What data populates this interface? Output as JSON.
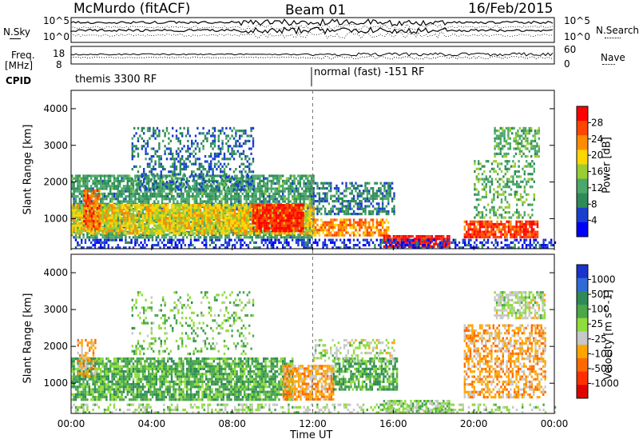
{
  "header": {
    "station": "McMurdo (fitACF)",
    "beam": "Beam 01",
    "date": "16/Feb/2015"
  },
  "top_panels": {
    "nsky_label": "N.Sky",
    "nsky_ticks": [
      "10^5",
      "10^0"
    ],
    "nsearch_label": "N.Search",
    "nsearch_ticks": [
      "10^5",
      "10^0"
    ],
    "freq_label_1": "Freq.",
    "freq_label_2": "[MHz]",
    "freq_ticks": [
      "18",
      "8"
    ],
    "nave_label": "Nave",
    "nave_ticks": [
      "60",
      "0"
    ],
    "cpid_label": "CPID",
    "cpid_segments": [
      {
        "start": "00:00",
        "text": "themis 3300 RF"
      },
      {
        "start": "12:00",
        "text": "normal (fast) -151 RF"
      }
    ]
  },
  "chart_data": [
    {
      "type": "heatmap",
      "parameter": "Power",
      "colorbar_label": "Power [dB]",
      "colorbar_ticks": [
        "28",
        "24",
        "20",
        "16",
        "12",
        "8",
        "4"
      ],
      "colorbar_range": [
        0,
        30
      ],
      "colors": [
        "#0000ff",
        "#1a3fd0",
        "#2e8b57",
        "#4aa86a",
        "#9acd32",
        "#ffd700",
        "#ff8c00",
        "#ff4500",
        "#ff0000"
      ],
      "ylabel": "Slant Range [km]",
      "yticks": [
        1000,
        2000,
        3000,
        4000
      ],
      "ylim": [
        180,
        4500
      ],
      "xlim_hours": [
        0,
        24
      ],
      "regions": [
        {
          "t": [
            0.0,
            12.0
          ],
          "r": [
            500,
            2200
          ],
          "v": 10,
          "d": 0.75
        },
        {
          "t": [
            0.0,
            12.0
          ],
          "r": [
            600,
            1400
          ],
          "v": 18,
          "d": 0.85
        },
        {
          "t": [
            0.6,
            1.4
          ],
          "r": [
            700,
            1800
          ],
          "v": 24,
          "d": 0.7
        },
        {
          "t": [
            9.0,
            11.5
          ],
          "r": [
            650,
            1400
          ],
          "v": 27,
          "d": 0.85
        },
        {
          "t": [
            3.0,
            9.0
          ],
          "r": [
            1800,
            3500
          ],
          "v": 7,
          "d": 0.35
        },
        {
          "t": [
            12.0,
            16.0
          ],
          "r": [
            1100,
            2000
          ],
          "v": 8,
          "d": 0.55
        },
        {
          "t": [
            12.0,
            15.8
          ],
          "r": [
            550,
            1000
          ],
          "v": 22,
          "d": 0.7
        },
        {
          "t": [
            15.5,
            18.8
          ],
          "r": [
            250,
            550
          ],
          "v": 28,
          "d": 0.9
        },
        {
          "t": [
            19.5,
            23.2
          ],
          "r": [
            500,
            950
          ],
          "v": 26,
          "d": 0.85
        },
        {
          "t": [
            20.0,
            23.0
          ],
          "r": [
            1000,
            2600
          ],
          "v": 12,
          "d": 0.35
        },
        {
          "t": [
            21.0,
            23.2
          ],
          "r": [
            2700,
            3500
          ],
          "v": 12,
          "d": 0.55
        },
        {
          "t": [
            0.0,
            24.0
          ],
          "r": [
            200,
            450
          ],
          "v": 4,
          "d": 0.45
        }
      ]
    },
    {
      "type": "heatmap",
      "parameter": "Velocity",
      "colorbar_label": "Velocity [m s^-1]",
      "colorbar_ticks": [
        "1000",
        "500",
        "100",
        "25",
        "-25",
        "-100",
        "-500",
        "-1000"
      ],
      "colorbar_range": [
        -1000,
        1000
      ],
      "colors": [
        "#1a33cc",
        "#2e6bd6",
        "#2e8b57",
        "#4aa84a",
        "#8fdc3c",
        "#c8c8c8",
        "#ffa500",
        "#ff6a00",
        "#ff3000",
        "#e00000"
      ],
      "ylabel": "Slant Range [km]",
      "yticks": [
        1000,
        2000,
        3000,
        4000
      ],
      "ylim": [
        180,
        4500
      ],
      "xlim_hours": [
        0,
        24
      ],
      "regions": [
        {
          "t": [
            0.0,
            11.0
          ],
          "r": [
            550,
            1700
          ],
          "v": 300,
          "d": 0.8
        },
        {
          "t": [
            0.3,
            1.2
          ],
          "r": [
            1200,
            2200
          ],
          "v": -300,
          "d": 0.55
        },
        {
          "t": [
            3.0,
            9.0
          ],
          "r": [
            1800,
            3500
          ],
          "v": 200,
          "d": 0.2
        },
        {
          "t": [
            10.5,
            13.0
          ],
          "r": [
            550,
            1500
          ],
          "v": -300,
          "d": 0.8
        },
        {
          "t": [
            13.0,
            16.2
          ],
          "r": [
            800,
            1700
          ],
          "v": 300,
          "d": 0.7
        },
        {
          "t": [
            12.0,
            16.0
          ],
          "r": [
            1600,
            2200
          ],
          "v": 0,
          "d": 0.35
        },
        {
          "t": [
            15.5,
            18.8
          ],
          "r": [
            250,
            550
          ],
          "v": 150,
          "d": 0.75
        },
        {
          "t": [
            19.5,
            23.5
          ],
          "r": [
            600,
            2600
          ],
          "v": -300,
          "d": 0.55
        },
        {
          "t": [
            21.0,
            23.5
          ],
          "r": [
            2800,
            3500
          ],
          "v": 0,
          "d": 0.7
        },
        {
          "t": [
            0.0,
            24.0
          ],
          "r": [
            200,
            450
          ],
          "v": 50,
          "d": 0.35
        }
      ]
    }
  ],
  "xaxis": {
    "ticks": [
      "00:00",
      "04:00",
      "08:00",
      "12:00",
      "16:00",
      "20:00",
      "00:00"
    ],
    "label": "Time UT"
  }
}
